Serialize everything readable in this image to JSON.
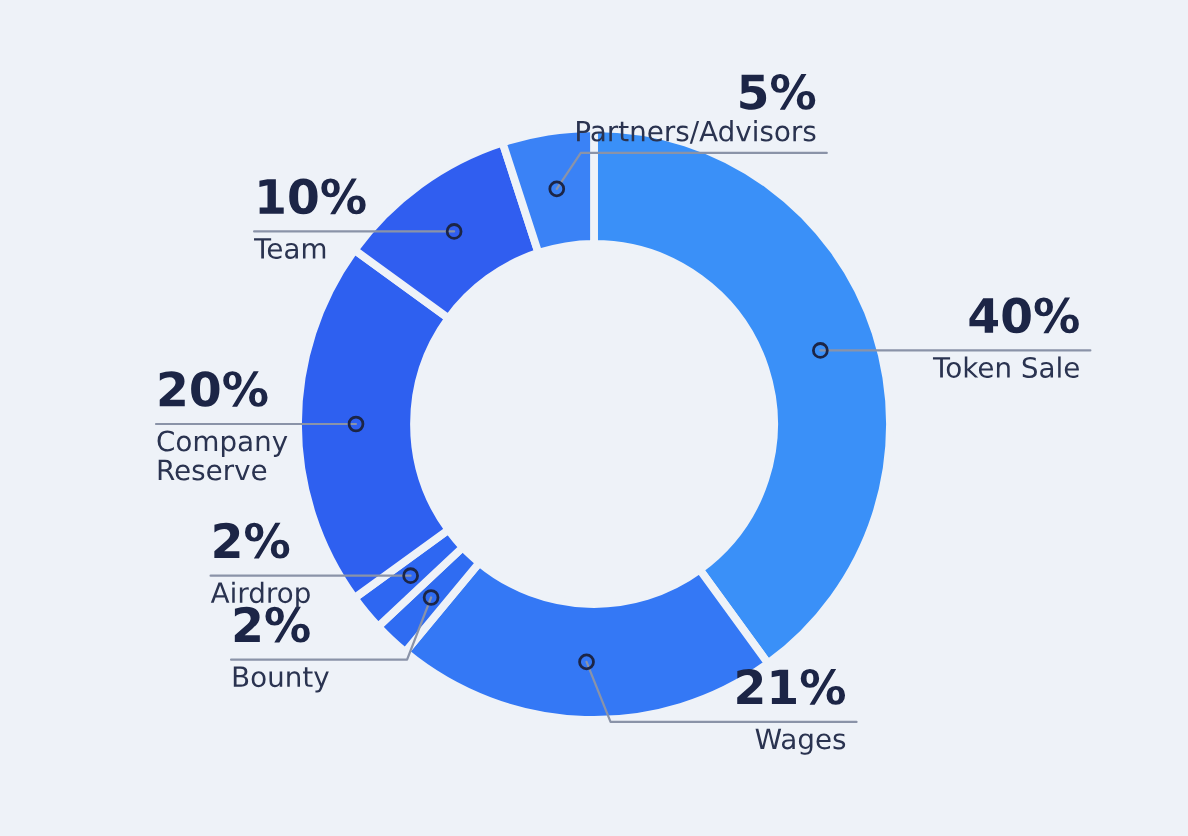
{
  "chart_data": {
    "type": "donut",
    "categories": [
      "Token Sale",
      "Wages",
      "Bounty",
      "Airdrop",
      "Company\nReserve",
      "Team",
      "Partners/Advisors"
    ],
    "values": [
      40,
      21,
      2,
      2,
      20,
      10,
      5
    ],
    "value_labels": [
      "40%",
      "21%",
      "2%",
      "2%",
      "20%",
      "10%",
      "5%"
    ],
    "colors": [
      "#3a90f8",
      "#3478f5",
      "#2f6cf2",
      "#2e67f2",
      "#2e60f0",
      "#305ef0",
      "#3a82f6"
    ]
  }
}
